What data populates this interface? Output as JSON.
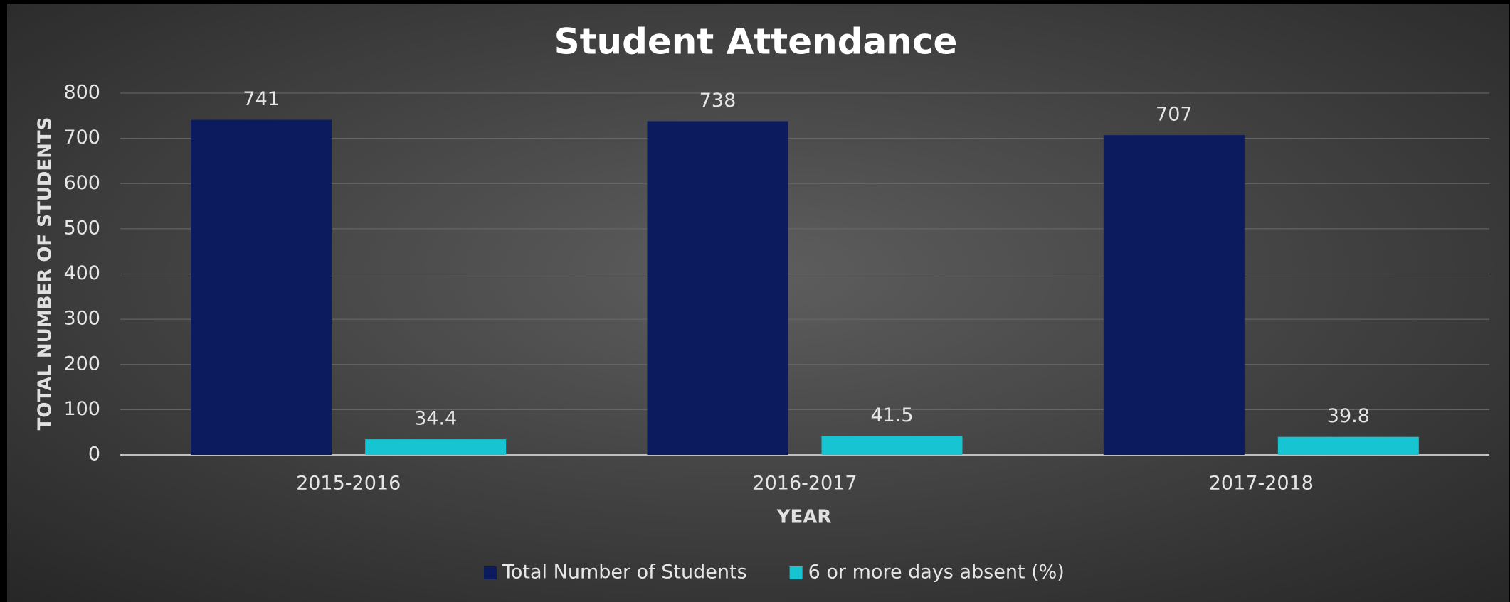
{
  "chart_data": {
    "type": "bar",
    "title": "Student Attendance",
    "x_label": "YEAR",
    "y_label": "TOTAL NUMBER OF STUDENTS",
    "categories": [
      "2015-2016",
      "2016-2017",
      "2017-2018"
    ],
    "series": [
      {
        "name": "Total Number of Students",
        "color": "#0b1b5e",
        "values": [
          741,
          738,
          707
        ]
      },
      {
        "name": "6 or more days absent (%)",
        "color": "#17c4d2",
        "values": [
          34.4,
          41.5,
          39.8
        ]
      }
    ],
    "ylim": [
      0,
      800
    ],
    "yticks": [
      0,
      100,
      200,
      300,
      400,
      500,
      600,
      700,
      800
    ],
    "grid": true,
    "legend": "bottom"
  }
}
